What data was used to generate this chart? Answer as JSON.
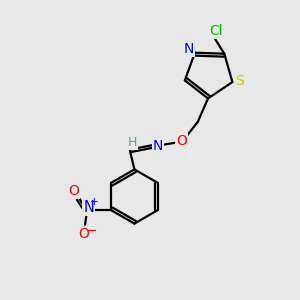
{
  "bg_color": "#e8e8e8",
  "atom_colors": {
    "C": "#000000",
    "H": "#5a9a9a",
    "N": "#0000ff",
    "O": "#ff0000",
    "S": "#cccc00",
    "Cl": "#00bb00"
  },
  "bond_color": "#000000",
  "bond_width": 1.6,
  "fig_width": 3.0,
  "fig_height": 3.0,
  "dpi": 100
}
